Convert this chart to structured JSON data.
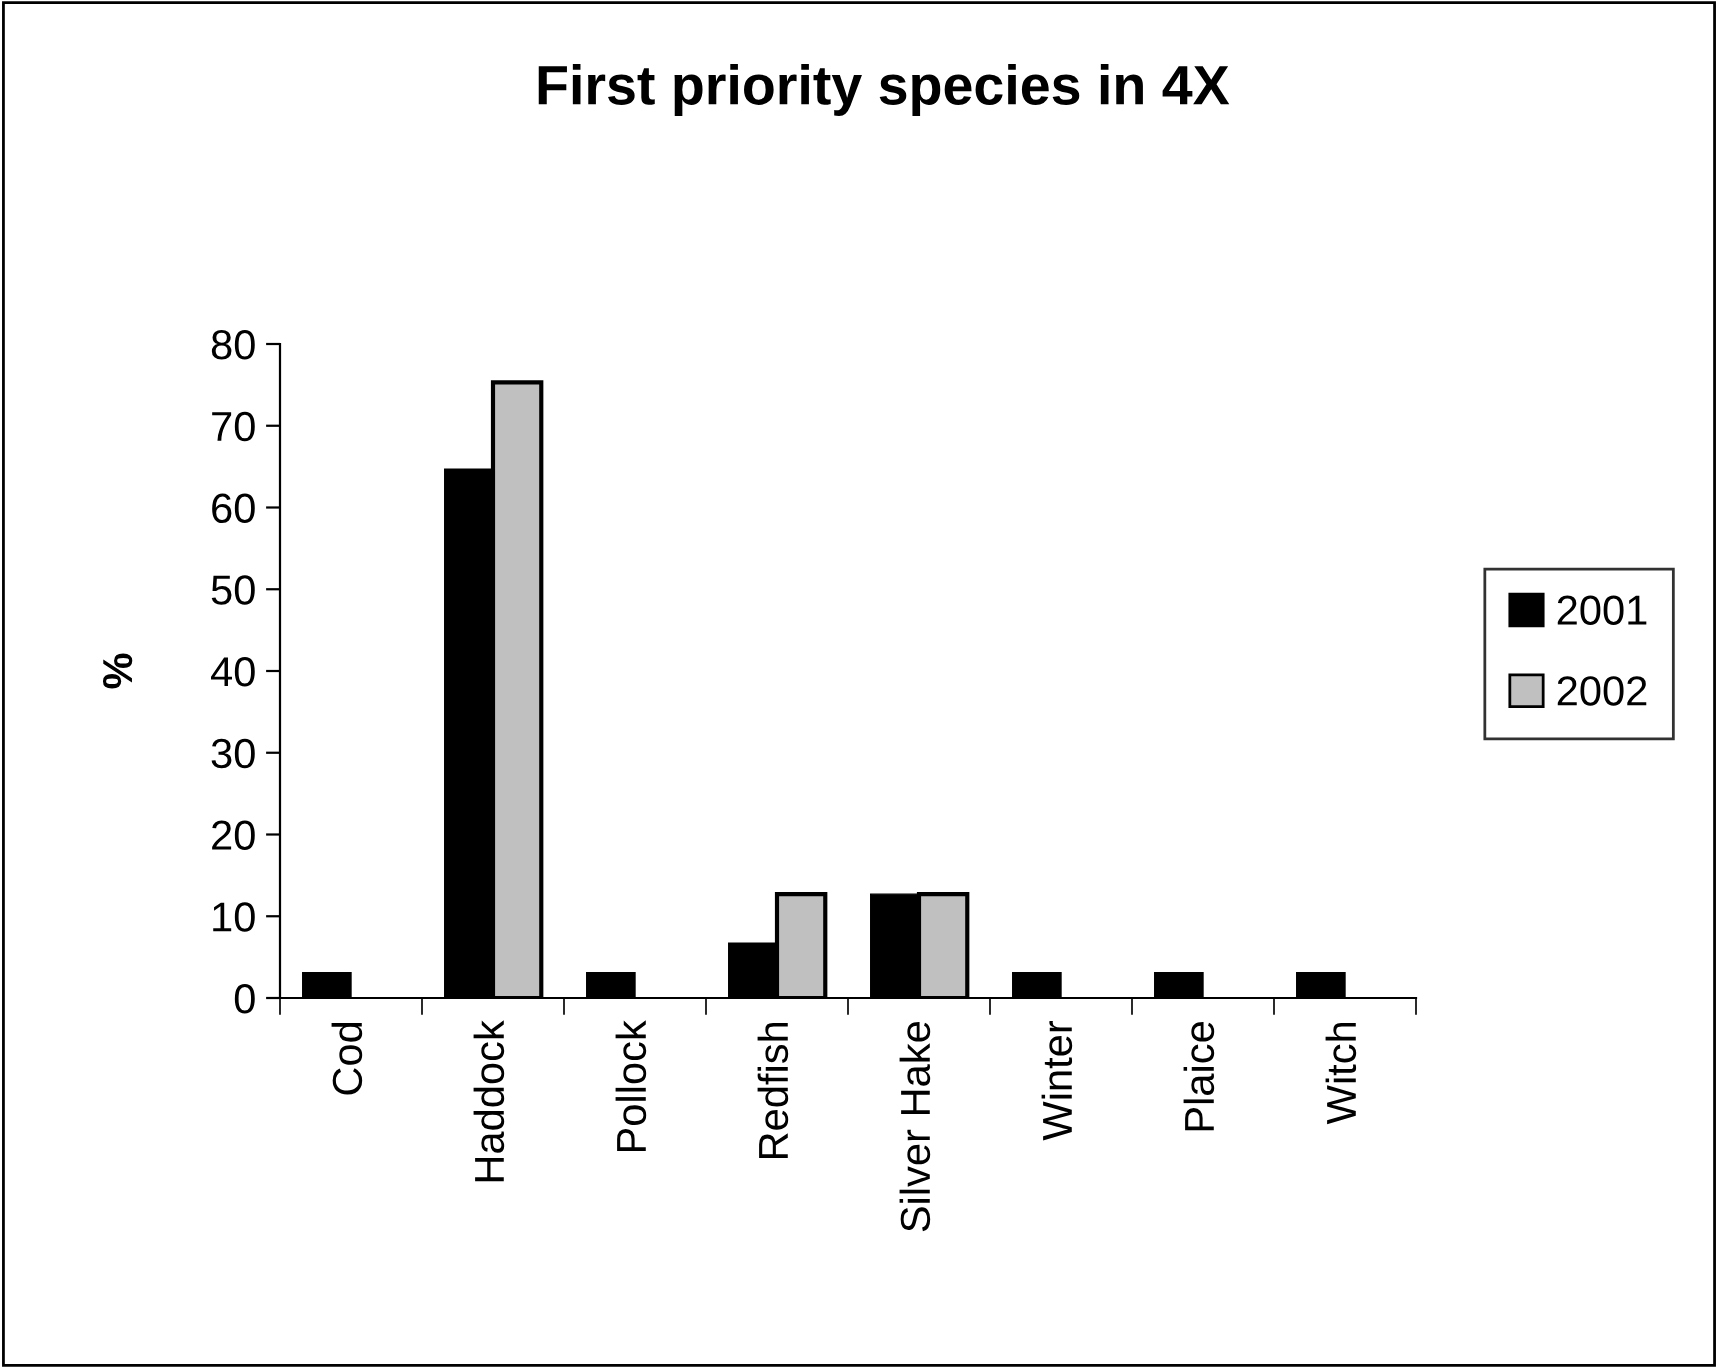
{
  "chart_data": {
    "type": "bar",
    "title": "First priority species in 4X",
    "ylabel": "%",
    "categories": [
      "Cod",
      "Haddock",
      "Pollock",
      "Redfish",
      "Silver Hake",
      "Winter",
      "Plaice",
      "Witch"
    ],
    "series": [
      {
        "name": "2001",
        "color": "#000000",
        "values": [
          3.1,
          64.7,
          3.1,
          6.7,
          12.7,
          3.1,
          3.1,
          3.1
        ]
      },
      {
        "name": "2002",
        "color": "#c0c0c0",
        "values": [
          null,
          75.3,
          null,
          12.7,
          12.7,
          null,
          null,
          null
        ]
      }
    ],
    "ylim": [
      0,
      80
    ],
    "yticks": [
      0,
      10,
      20,
      30,
      40,
      50,
      60,
      70,
      80
    ],
    "grid": false,
    "legend": "right"
  }
}
